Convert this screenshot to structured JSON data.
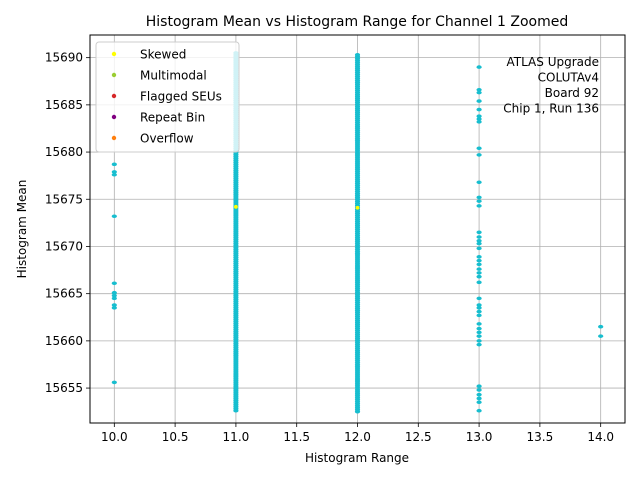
{
  "chart_data": {
    "type": "scatter",
    "title": "Histogram Mean vs Histogram Range for Channel 1 Zoomed",
    "xlabel": "Histogram Range",
    "ylabel": "Histogram Mean",
    "xlim": [
      9.8,
      14.2
    ],
    "ylim": [
      15651.3,
      15692.4
    ],
    "xticks": [
      "10.0",
      "10.5",
      "11.0",
      "11.5",
      "12.0",
      "12.5",
      "13.0",
      "13.5",
      "14.0"
    ],
    "yticks": [
      "15655",
      "15660",
      "15665",
      "15670",
      "15675",
      "15680",
      "15685",
      "15690"
    ],
    "grid": true,
    "legend_position": "top-left",
    "annotation": [
      "ATLAS Upgrade",
      "COLUTAv4",
      "Board 92",
      "Chip 1, Run 136"
    ],
    "series": [
      {
        "name": "Skewed",
        "color": "#ffff00",
        "points": [
          [
            11,
            15674.2
          ],
          [
            12,
            15674.1
          ]
        ]
      },
      {
        "name": "Multimodal",
        "color": "#9acd32",
        "points": []
      },
      {
        "name": "Flagged SEUs",
        "color": "#d62728",
        "points": []
      },
      {
        "name": "Repeat Bin",
        "color": "#800080",
        "points": []
      },
      {
        "name": "Overflow",
        "color": "#ff7f0e",
        "points": []
      }
    ],
    "base_series": {
      "color": "#17becf",
      "points": [
        [
          10,
          15678.7
        ],
        [
          10,
          15677.9
        ],
        [
          10,
          15677.6
        ],
        [
          10,
          15673.2
        ],
        [
          10,
          15666.1
        ],
        [
          10,
          15665.1
        ],
        [
          10,
          15664.8
        ],
        [
          10,
          15664.5
        ],
        [
          10,
          15663.8
        ],
        [
          10,
          15663.5
        ],
        [
          10,
          15655.6
        ],
        [
          13,
          15689.0
        ],
        [
          13,
          15686.6
        ],
        [
          13,
          15686.3
        ],
        [
          13,
          15685.4
        ],
        [
          13,
          15684.5
        ],
        [
          13,
          15683.8
        ],
        [
          13,
          15683.5
        ],
        [
          13,
          15683.2
        ],
        [
          13,
          15680.4
        ],
        [
          13,
          15679.7
        ],
        [
          13,
          15676.8
        ],
        [
          13,
          15675.2
        ],
        [
          13,
          15674.8
        ],
        [
          13,
          15674.3
        ],
        [
          13,
          15671.5
        ],
        [
          13,
          15671.0
        ],
        [
          13,
          15670.6
        ],
        [
          13,
          15670.3
        ],
        [
          13,
          15669.8
        ],
        [
          13,
          15668.9
        ],
        [
          13,
          15668.5
        ],
        [
          13,
          15668.1
        ],
        [
          13,
          15667.6
        ],
        [
          13,
          15667.2
        ],
        [
          13,
          15666.8
        ],
        [
          13,
          15666.2
        ],
        [
          13,
          15664.5
        ],
        [
          13,
          15663.8
        ],
        [
          13,
          15663.5
        ],
        [
          13,
          15663.1
        ],
        [
          13,
          15662.7
        ],
        [
          13,
          15661.8
        ],
        [
          13,
          15661.3
        ],
        [
          13,
          15660.9
        ],
        [
          13,
          15660.5
        ],
        [
          13,
          15660.0
        ],
        [
          13,
          15659.6
        ],
        [
          13,
          15655.2
        ],
        [
          13,
          15654.8
        ],
        [
          13,
          15654.3
        ],
        [
          13,
          15653.9
        ],
        [
          13,
          15653.5
        ],
        [
          13,
          15652.6
        ],
        [
          14,
          15661.5
        ],
        [
          14,
          15660.5
        ]
      ],
      "dense": [
        {
          "x": 11,
          "ranges": [
            [
              15652.6,
              15690.5
            ]
          ]
        },
        {
          "x": 12,
          "ranges": [
            [
              15652.5,
              15690.3
            ]
          ]
        }
      ]
    }
  }
}
